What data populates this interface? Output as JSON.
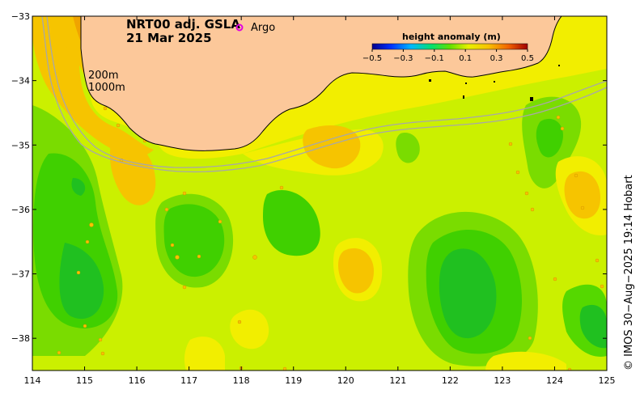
{
  "title": {
    "line1": "NRT00 adj. GSLA",
    "line2": "21 Mar 2025"
  },
  "legend": {
    "marker": "o",
    "label": "Argo",
    "marker_color": "#e000e0"
  },
  "colorbar": {
    "title": "height anomaly (m)",
    "min": -0.5,
    "max": 0.5,
    "ticks": [
      "−0.5",
      "−0.3",
      "−0.1",
      "0.1",
      "0.3",
      "0.5"
    ]
  },
  "contours": {
    "label_200": "200m",
    "label_1000": "1000m"
  },
  "axes": {
    "x_ticks": [
      "114",
      "115",
      "116",
      "117",
      "118",
      "119",
      "120",
      "121",
      "122",
      "123",
      "124",
      "125"
    ],
    "y_ticks": [
      "−33",
      "−34",
      "−35",
      "−36",
      "−37",
      "−38"
    ],
    "x_range": [
      114,
      125
    ],
    "y_range": [
      -38.5,
      -33
    ]
  },
  "credit": "© IMOS 30−Aug−2025 19:14 Hobart",
  "colors": {
    "land": "#fcc89a",
    "ocean_base": "#cbf000",
    "strong_low": "#00c800",
    "low": "#55d800",
    "high_yellow": "#f2ee00",
    "high_orange": "#f6c400",
    "peak": "#f0a400"
  }
}
